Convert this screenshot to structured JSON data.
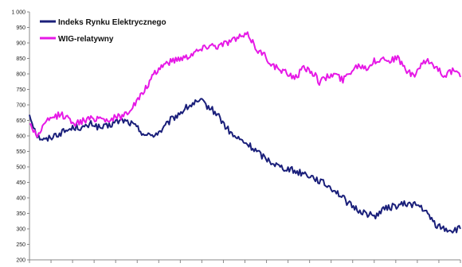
{
  "chart_data": {
    "type": "line",
    "ylim": [
      200,
      1000
    ],
    "y_ticks": [
      "1 000",
      "950",
      "900",
      "850",
      "800",
      "750",
      "700",
      "650",
      "600",
      "550",
      "500",
      "450",
      "400",
      "350",
      "300",
      "250",
      "200"
    ],
    "grid": false,
    "legend_position": "top-left",
    "x_tick_labels_visible": false,
    "series": [
      {
        "name": "Indeks Rynku Elektrycznego",
        "color": "#1a1f7a",
        "values": [
          670,
          600,
          585,
          600,
          610,
          620,
          630,
          625,
          640,
          625,
          630,
          645,
          650,
          640,
          620,
          600,
          605,
          620,
          650,
          670,
          690,
          705,
          710,
          690,
          670,
          630,
          600,
          585,
          570,
          550,
          530,
          515,
          500,
          495,
          485,
          480,
          470,
          455,
          440,
          425,
          400,
          375,
          360,
          350,
          340,
          360,
          370,
          375,
          380,
          380,
          370,
          340,
          310,
          300,
          295,
          300
        ]
      },
      {
        "name": "WIG-relatywny",
        "color": "#e619e6",
        "values": [
          640,
          600,
          640,
          660,
          670,
          655,
          640,
          650,
          655,
          660,
          650,
          660,
          665,
          690,
          720,
          760,
          800,
          830,
          840,
          850,
          855,
          870,
          880,
          895,
          890,
          900,
          910,
          920,
          925,
          880,
          860,
          830,
          810,
          800,
          790,
          820,
          810,
          775,
          790,
          800,
          780,
          810,
          830,
          820,
          840,
          850,
          845,
          850,
          815,
          790,
          830,
          840,
          820,
          795,
          810,
          790
        ]
      }
    ]
  }
}
